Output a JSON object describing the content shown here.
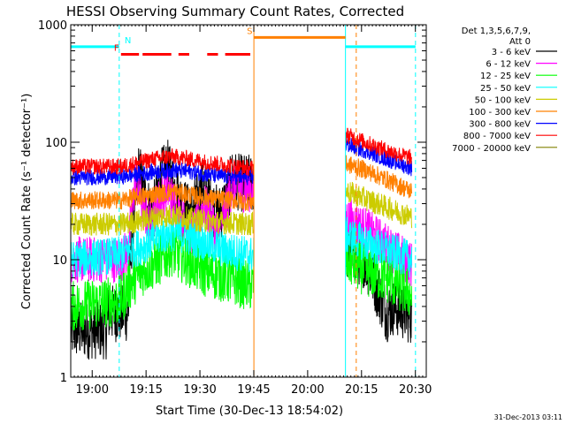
{
  "chart_data": {
    "type": "line",
    "title": "HESSI Observing Summary Count Rates, Corrected",
    "xlabel": "Start Time (30-Dec-13 18:54:02)",
    "ylabel": "Corrected Count Rate (s⁻¹ detector⁻¹)",
    "yscale": "log",
    "ylim": [
      1,
      1000
    ],
    "xlim_minutes_since_start": [
      0,
      99
    ],
    "x_ticks": [
      {
        "t": 5.97,
        "label": "19:00"
      },
      {
        "t": 20.97,
        "label": "19:15"
      },
      {
        "t": 35.97,
        "label": "19:30"
      },
      {
        "t": 50.97,
        "label": "19:45"
      },
      {
        "t": 65.97,
        "label": "20:00"
      },
      {
        "t": 80.97,
        "label": "20:15"
      },
      {
        "t": 95.97,
        "label": "20:30"
      }
    ],
    "y_ticks": [
      {
        "v": 1,
        "label": "1"
      },
      {
        "v": 10,
        "label": "10"
      },
      {
        "v": 100,
        "label": "100"
      },
      {
        "v": 1000,
        "label": "1000"
      }
    ],
    "legend_header": [
      "Det 1,3,5,6,7,9,",
      "Att 0"
    ],
    "timestamp": "31-Dec-2013 03:11",
    "grid": false,
    "legend_position": "right",
    "data_gap_minutes": [
      51,
      76.5
    ],
    "series": [
      {
        "name": "3 - 6 keV",
        "color": "#000000",
        "points": [
          [
            0,
            2.5
          ],
          [
            10,
            2.5
          ],
          [
            10.5,
            3.5
          ],
          [
            16,
            3.5
          ],
          [
            17,
            15
          ],
          [
            19,
            60
          ],
          [
            21,
            30
          ],
          [
            23,
            25
          ],
          [
            25,
            50
          ],
          [
            27,
            60
          ],
          [
            29,
            40
          ],
          [
            31,
            30
          ],
          [
            33,
            25
          ],
          [
            35,
            30
          ],
          [
            37,
            45
          ],
          [
            39,
            30
          ],
          [
            41,
            24
          ],
          [
            43,
            30
          ],
          [
            45,
            50
          ],
          [
            47,
            45
          ],
          [
            50,
            45
          ],
          [
            77,
            12
          ],
          [
            82,
            10
          ],
          [
            86,
            5
          ],
          [
            88,
            3.5
          ],
          [
            90,
            4
          ],
          [
            95,
            3.3
          ]
        ]
      },
      {
        "name": "6 - 12 keV",
        "color": "#ff00ff",
        "points": [
          [
            0,
            10
          ],
          [
            14,
            10
          ],
          [
            16,
            12
          ],
          [
            18,
            50
          ],
          [
            20,
            28
          ],
          [
            22,
            20
          ],
          [
            24,
            30
          ],
          [
            27,
            40
          ],
          [
            30,
            25
          ],
          [
            33,
            17
          ],
          [
            35,
            18
          ],
          [
            37,
            30
          ],
          [
            39,
            22
          ],
          [
            41,
            17
          ],
          [
            43,
            25
          ],
          [
            45,
            45
          ],
          [
            47,
            40
          ],
          [
            50,
            40
          ],
          [
            77,
            22
          ],
          [
            82,
            18
          ],
          [
            88,
            13
          ],
          [
            95,
            9
          ]
        ]
      },
      {
        "name": "12 - 25 keV",
        "color": "#00ff00",
        "points": [
          [
            0,
            4
          ],
          [
            14,
            4.5
          ],
          [
            16,
            6
          ],
          [
            20,
            8
          ],
          [
            25,
            10
          ],
          [
            28,
            12
          ],
          [
            32,
            10
          ],
          [
            37,
            8
          ],
          [
            43,
            7
          ],
          [
            50,
            6
          ],
          [
            77,
            10
          ],
          [
            82,
            8
          ],
          [
            88,
            7
          ],
          [
            95,
            5
          ]
        ]
      },
      {
        "name": "25 - 50 keV",
        "color": "#00ffff",
        "points": [
          [
            0,
            10
          ],
          [
            14,
            11
          ],
          [
            16,
            12
          ],
          [
            20,
            13
          ],
          [
            25,
            16
          ],
          [
            29,
            17
          ],
          [
            32,
            16
          ],
          [
            37,
            14
          ],
          [
            43,
            12
          ],
          [
            50,
            11
          ],
          [
            77,
            16
          ],
          [
            82,
            14
          ],
          [
            88,
            12
          ],
          [
            95,
            10
          ]
        ]
      },
      {
        "name": "50 - 100 keV",
        "color": "#cccc00",
        "points": [
          [
            0,
            20
          ],
          [
            14,
            20
          ],
          [
            18,
            21
          ],
          [
            23,
            23
          ],
          [
            29,
            24
          ],
          [
            34,
            22
          ],
          [
            40,
            21
          ],
          [
            50,
            20
          ],
          [
            77,
            38
          ],
          [
            82,
            33
          ],
          [
            88,
            28
          ],
          [
            95,
            23
          ]
        ]
      },
      {
        "name": "100 - 300 keV",
        "color": "#ff8000",
        "points": [
          [
            0,
            32
          ],
          [
            14,
            32
          ],
          [
            18,
            34
          ],
          [
            23,
            36
          ],
          [
            29,
            38
          ],
          [
            34,
            35
          ],
          [
            40,
            33
          ],
          [
            50,
            31
          ],
          [
            77,
            65
          ],
          [
            82,
            58
          ],
          [
            88,
            48
          ],
          [
            95,
            38
          ]
        ]
      },
      {
        "name": "300 - 800 keV",
        "color": "#0000ff",
        "points": [
          [
            0,
            50
          ],
          [
            14,
            51
          ],
          [
            18,
            53
          ],
          [
            23,
            56
          ],
          [
            29,
            58
          ],
          [
            34,
            56
          ],
          [
            40,
            52
          ],
          [
            50,
            50
          ],
          [
            77,
            95
          ],
          [
            82,
            85
          ],
          [
            88,
            72
          ],
          [
            95,
            60
          ]
        ]
      },
      {
        "name": "800 - 7000 keV",
        "color": "#ff0000",
        "points": [
          [
            0,
            62
          ],
          [
            14,
            62
          ],
          [
            18,
            66
          ],
          [
            23,
            72
          ],
          [
            28,
            76
          ],
          [
            33,
            72
          ],
          [
            40,
            66
          ],
          [
            50,
            60
          ],
          [
            77,
            115
          ],
          [
            82,
            100
          ],
          [
            88,
            85
          ],
          [
            95,
            73
          ]
        ]
      },
      {
        "name": "7000 - 20000 keV",
        "color": "#808000",
        "points": []
      }
    ],
    "flags": {
      "N": {
        "label": "N",
        "color": "#00ffff",
        "y_value": 650,
        "segments": [
          [
            0,
            13.5
          ],
          [
            76.5,
            96
          ]
        ]
      },
      "F": {
        "label": "F",
        "color": "#ff0000",
        "y_value": 560,
        "segments": [
          [
            14,
            19
          ],
          [
            20,
            28
          ],
          [
            30,
            33
          ],
          [
            38,
            41
          ],
          [
            43,
            50
          ]
        ]
      },
      "S": {
        "label": "S",
        "color": "#ff8000",
        "y_value": 780,
        "segments": [
          [
            51,
            76.5
          ]
        ]
      }
    },
    "vertical_markers": [
      {
        "t": 0,
        "color": "#00ffff",
        "style": "solid"
      },
      {
        "t": 13.5,
        "color": "#00ffff",
        "style": "dashed"
      },
      {
        "t": 51,
        "color": "#ff8000",
        "style": "solid"
      },
      {
        "t": 76.5,
        "color": "#00ffff",
        "style": "solid"
      },
      {
        "t": 79.5,
        "color": "#ff8000",
        "style": "dashed"
      },
      {
        "t": 96,
        "color": "#00ffff",
        "style": "dashed"
      }
    ]
  }
}
